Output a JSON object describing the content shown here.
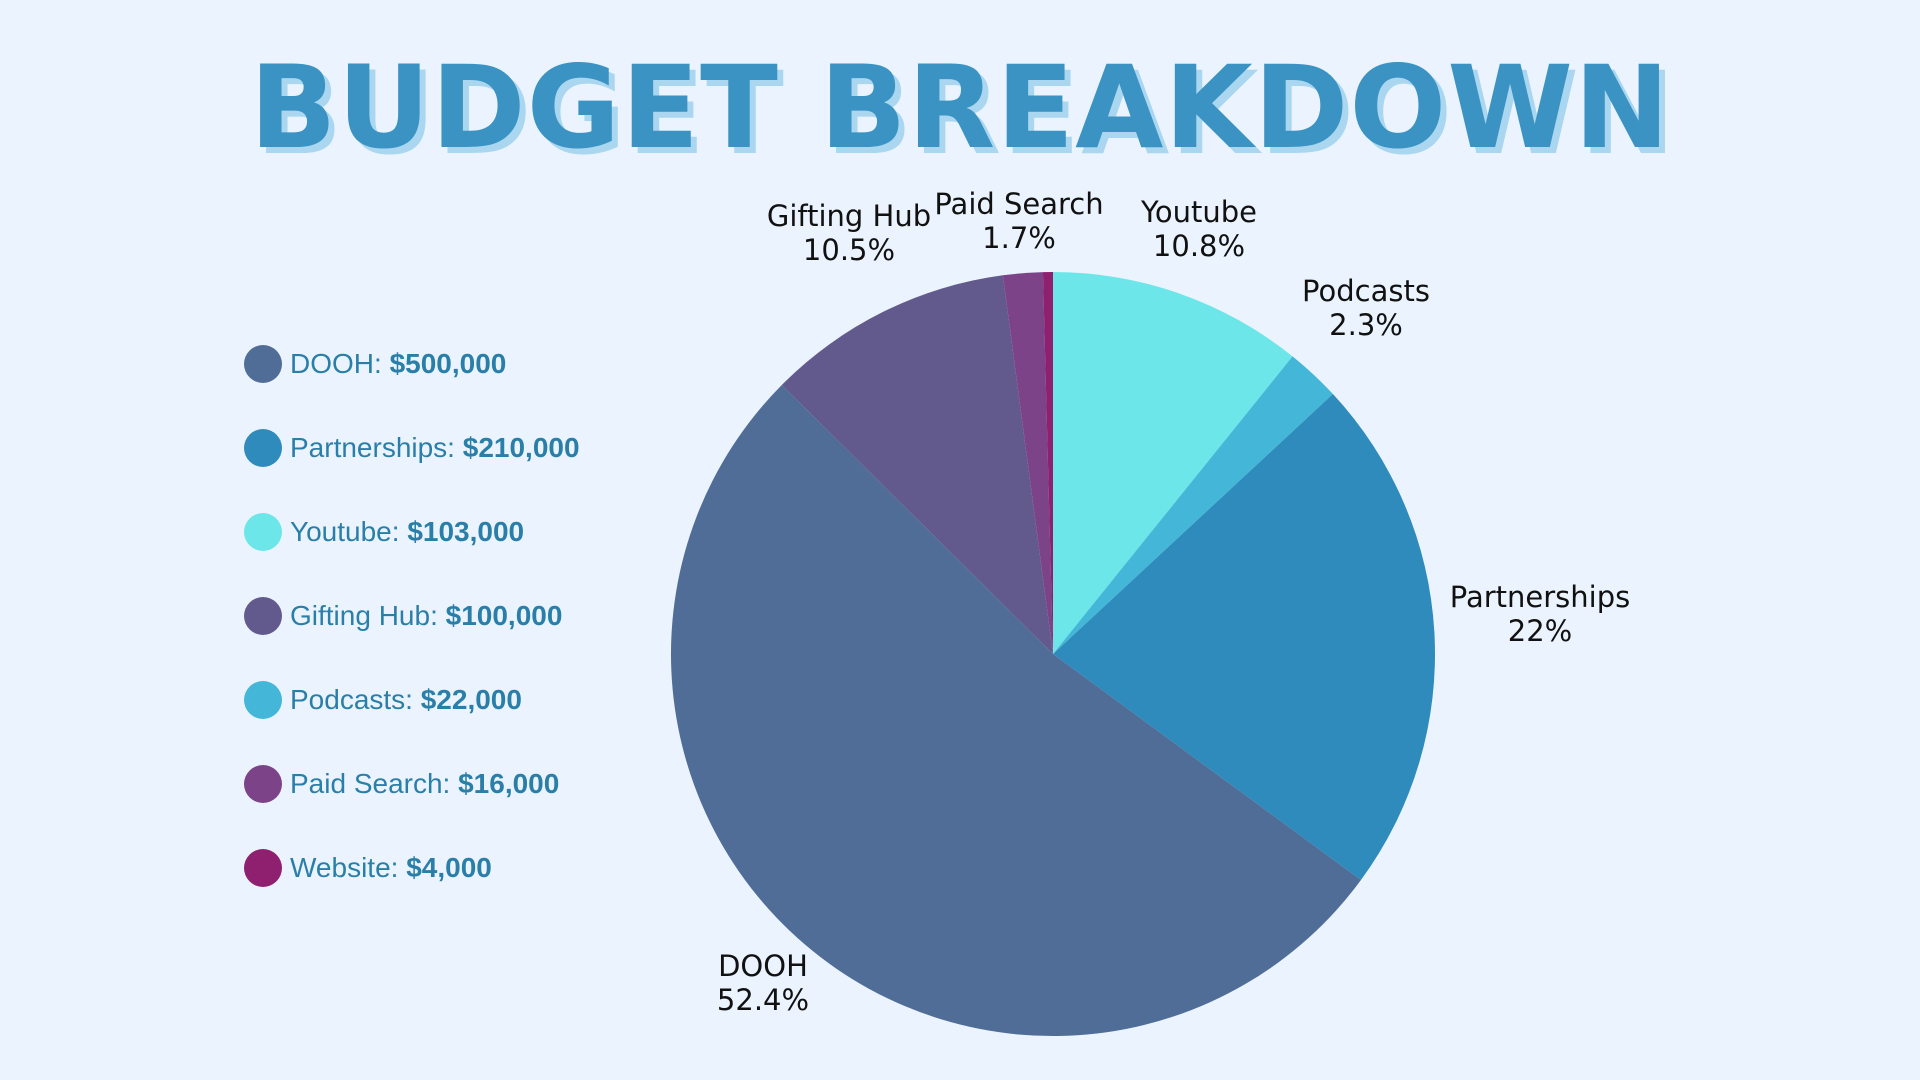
{
  "title": "BUDGET BREAKDOWN",
  "legend": [
    {
      "label": "DOOH:",
      "value": "$500,000"
    },
    {
      "label": "Partnerships:",
      "value": "$210,000"
    },
    {
      "label": "Youtube:",
      "value": "$103,000"
    },
    {
      "label": "Gifting Hub:",
      "value": "$100,000"
    },
    {
      "label": "Podcasts:",
      "value": "$22,000"
    },
    {
      "label": "Paid Search:",
      "value": "$16,000"
    },
    {
      "label": "Website:",
      "value": "$4,000"
    }
  ],
  "chart_data": {
    "type": "pie",
    "title": "BUDGET BREAKDOWN",
    "start": "12 o'clock, clockwise",
    "slices": [
      {
        "name": "Youtube",
        "value": 103000,
        "percent_label": "10.8%",
        "color": "#6DE6E9"
      },
      {
        "name": "Podcasts",
        "value": 22000,
        "percent_label": "2.3%",
        "color": "#44B7D8"
      },
      {
        "name": "Partnerships",
        "value": 210000,
        "percent_label": "22%",
        "color": "#2E8BBB"
      },
      {
        "name": "DOOH",
        "value": 500000,
        "percent_label": "52.4%",
        "color": "#4F6D97"
      },
      {
        "name": "Gifting Hub",
        "value": 100000,
        "percent_label": "10.5%",
        "color": "#625A8D"
      },
      {
        "name": "Paid Search",
        "value": 16000,
        "percent_label": "1.7%",
        "color": "#7D4388"
      },
      {
        "name": "Website",
        "value": 4000,
        "percent_label": "",
        "color": "#8F1F6F"
      }
    ],
    "legend_order": [
      "DOOH",
      "Partnerships",
      "Youtube",
      "Gifting Hub",
      "Podcasts",
      "Paid Search",
      "Website"
    ]
  }
}
